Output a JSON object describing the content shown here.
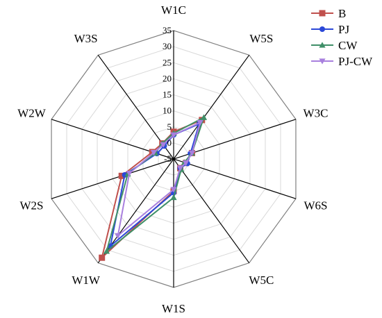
{
  "chart_data": {
    "type": "radar",
    "categories": [
      "W1C",
      "W5S",
      "W3C",
      "W6S",
      "W5C",
      "W1S",
      "W1W",
      "W2S",
      "W2W",
      "W3S"
    ],
    "radial_range": [
      -5,
      35
    ],
    "radial_ticks": [
      "-5",
      "0",
      "5",
      "10",
      "15",
      "20",
      "25",
      "30",
      "35"
    ],
    "gridlines": true,
    "legend_position": "top-right",
    "series": [
      {
        "name": "B",
        "color": "#c0504d",
        "marker": "square",
        "values": [
          3.5,
          10,
          1,
          -1,
          -1.5,
          5,
          33,
          12,
          2,
          1
        ]
      },
      {
        "name": "PJ",
        "color": "#2b48d8",
        "marker": "circle",
        "values": [
          2.5,
          8.5,
          0.5,
          -0.5,
          -1.5,
          5.5,
          28.5,
          11,
          0.5,
          0
        ]
      },
      {
        "name": "CW",
        "color": "#3f8f68",
        "marker": "triangle-up",
        "values": [
          3,
          11,
          1,
          -1.5,
          -1,
          7,
          30.5,
          10,
          1,
          1
        ]
      },
      {
        "name": "PJ-CW",
        "color": "#a87fde",
        "marker": "triangle-down",
        "values": [
          2.5,
          9,
          1,
          -1,
          -1.5,
          4.5,
          24.5,
          9.5,
          1.5,
          0.5
        ]
      }
    ]
  }
}
